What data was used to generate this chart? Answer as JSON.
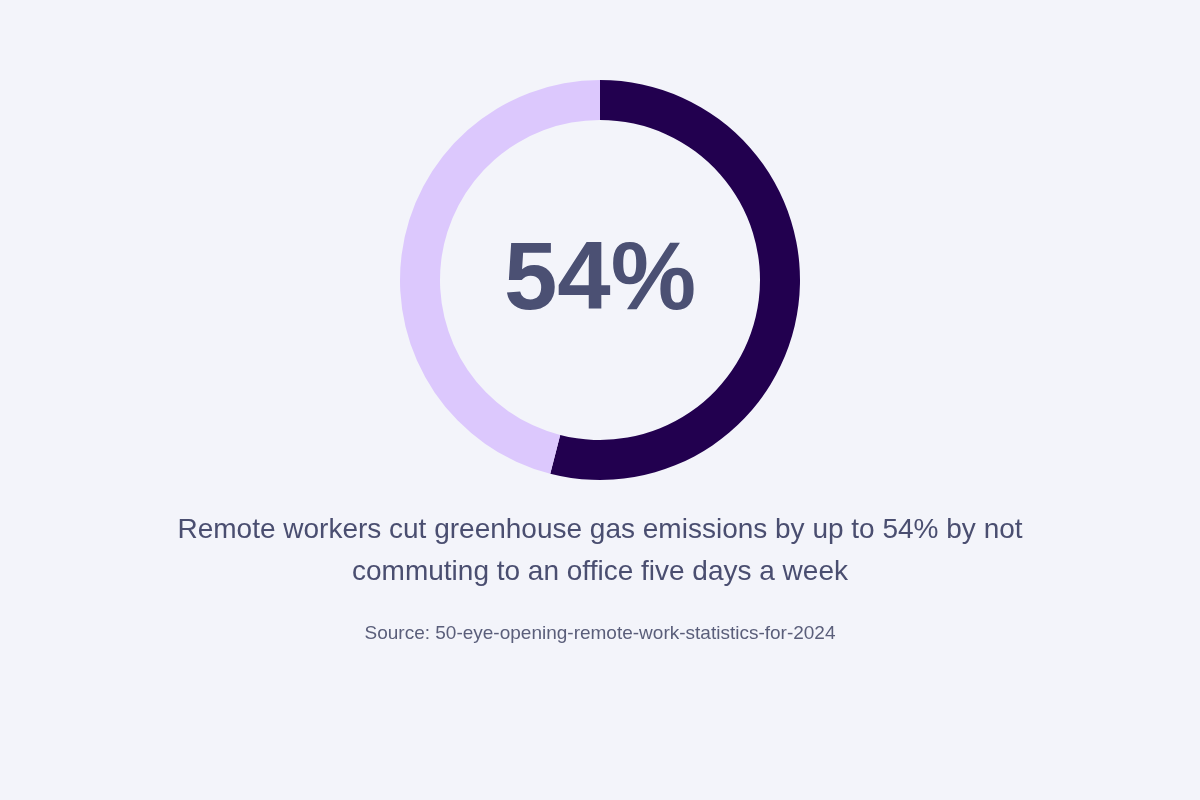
{
  "chart_data": {
    "type": "donut",
    "title": "Remote workers cut greenhouse gas emissions by up to 54% by not commuting to an office five days a week",
    "categories": [
      null,
      null
    ],
    "values": [
      54,
      46
    ],
    "colors": [
      "#22004f",
      "#dcc8fd"
    ],
    "annotations": [
      "54%",
      "Source: 50-eye-opening-remote-work-statistics-for-2024"
    ]
  }
}
